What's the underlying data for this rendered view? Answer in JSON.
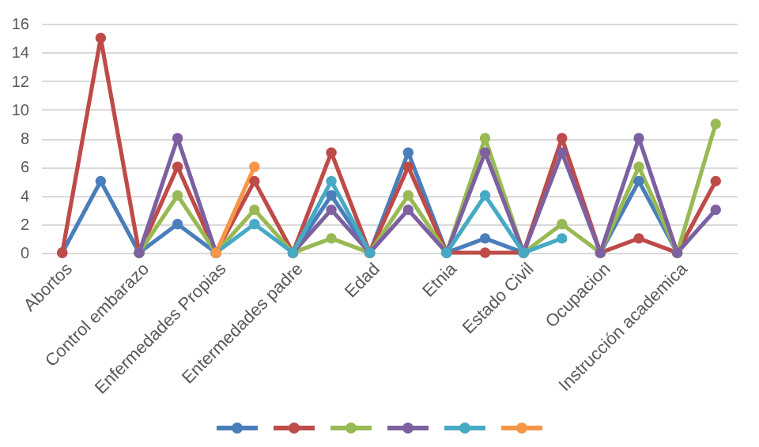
{
  "chart_data": {
    "type": "line",
    "categories": [
      "Abortos",
      null,
      "Control embarazo",
      null,
      "Enfermedades Propias",
      null,
      "Entermedades  padre",
      null,
      "Edad",
      null,
      "Etnia",
      null,
      "Estado Civil",
      null,
      "Ocupacion",
      null,
      "Instrucción academica",
      null
    ],
    "series": [
      {
        "color": "#4a7ebb",
        "values": [
          0,
          5,
          0,
          2,
          0,
          null,
          0,
          4,
          0,
          7,
          0,
          1,
          0,
          null,
          0,
          5,
          0,
          null
        ]
      },
      {
        "color": "#be4b48",
        "values": [
          0,
          15,
          0,
          6,
          0,
          5,
          0,
          7,
          0,
          6,
          0,
          0,
          0,
          8,
          0,
          1,
          0,
          5
        ]
      },
      {
        "color": "#98b954",
        "values": [
          null,
          null,
          0,
          4,
          0,
          3,
          0,
          1,
          0,
          4,
          0,
          8,
          0,
          2,
          0,
          6,
          0,
          9
        ]
      },
      {
        "color": "#7d60a0",
        "values": [
          null,
          null,
          0,
          8,
          0,
          null,
          0,
          3,
          0,
          3,
          0,
          7,
          0,
          7,
          0,
          8,
          0,
          3
        ]
      },
      {
        "color": "#46aac5",
        "values": [
          null,
          null,
          null,
          null,
          0,
          2,
          0,
          5,
          0,
          null,
          0,
          4,
          0,
          1,
          null,
          null,
          null,
          null
        ]
      },
      {
        "color": "#f79646",
        "values": [
          null,
          null,
          null,
          null,
          0,
          6,
          null,
          null,
          null,
          null,
          null,
          null,
          null,
          null,
          null,
          null,
          null,
          null
        ]
      }
    ],
    "ylim": [
      0,
      16
    ],
    "yticks": [
      0,
      2,
      4,
      6,
      8,
      10,
      12,
      14,
      16
    ],
    "grid": "y",
    "marker": "circle",
    "line_style": "solid"
  }
}
